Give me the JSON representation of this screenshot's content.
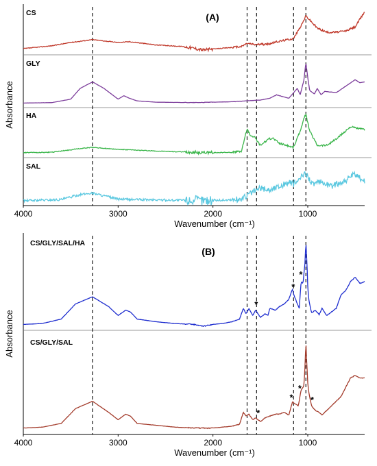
{
  "chart_data": [
    {
      "type": "line",
      "panel_label": "(A)",
      "xlabel": "Wavenumber (cm⁻¹)",
      "ylabel": "Absorbance",
      "xlim": [
        4000,
        400
      ],
      "x_reversed": true,
      "x_ticks": [
        {
          "value": 4000,
          "label": "4000"
        },
        {
          "value": 3000,
          "label": "3000"
        },
        {
          "value": 2000,
          "label": "2000"
        },
        {
          "value": 1000,
          "label": "1000"
        }
      ],
      "reference_lines_x": [
        3270,
        1640,
        1540,
        1150,
        1020
      ],
      "grid": false,
      "stacked": true,
      "series": [
        {
          "name": "CS",
          "color": "#c0392b",
          "noise": 0.03,
          "x": [
            4000,
            3700,
            3500,
            3270,
            3000,
            2880,
            2600,
            2300,
            2100,
            1900,
            1700,
            1640,
            1560,
            1420,
            1320,
            1150,
            1060,
            1020,
            900,
            800,
            700,
            600,
            500,
            400
          ],
          "y": [
            0.05,
            0.12,
            0.2,
            0.27,
            0.2,
            0.22,
            0.14,
            0.1,
            0.02,
            0.06,
            0.1,
            0.18,
            0.15,
            0.16,
            0.22,
            0.3,
            0.65,
            0.85,
            0.55,
            0.45,
            0.45,
            0.48,
            0.58,
            0.95
          ]
        },
        {
          "name": "GLY",
          "color": "#7b3b9a",
          "noise": 0.004,
          "x": [
            4000,
            3700,
            3500,
            3400,
            3270,
            3150,
            3000,
            2940,
            2880,
            2800,
            2600,
            2200,
            1800,
            1500,
            1400,
            1330,
            1200,
            1110,
            1080,
            1040,
            1020,
            1000,
            980,
            930,
            900,
            860,
            820,
            700,
            600,
            500,
            450,
            400
          ],
          "y": [
            0.01,
            0.02,
            0.1,
            0.35,
            0.5,
            0.35,
            0.1,
            0.18,
            0.12,
            0.06,
            0.03,
            0.02,
            0.04,
            0.08,
            0.12,
            0.2,
            0.12,
            0.35,
            0.2,
            0.55,
            0.95,
            0.6,
            0.3,
            0.22,
            0.35,
            0.2,
            0.28,
            0.25,
            0.4,
            0.55,
            0.48,
            0.5
          ]
        },
        {
          "name": "HA",
          "color": "#3ab54a",
          "noise": 0.03,
          "x": [
            4000,
            3700,
            3400,
            3270,
            3000,
            2600,
            2200,
            2000,
            1800,
            1700,
            1640,
            1610,
            1560,
            1500,
            1410,
            1370,
            1300,
            1150,
            1080,
            1040,
            1020,
            980,
            900,
            800,
            700,
            600,
            550,
            500,
            450,
            400
          ],
          "y": [
            0.02,
            0.03,
            0.12,
            0.15,
            0.1,
            0.06,
            0.03,
            0.02,
            0.03,
            0.05,
            0.6,
            0.45,
            0.4,
            0.2,
            0.35,
            0.38,
            0.25,
            0.15,
            0.55,
            0.85,
            0.95,
            0.55,
            0.2,
            0.2,
            0.35,
            0.55,
            0.65,
            0.62,
            0.6,
            0.58
          ]
        },
        {
          "name": "SAL",
          "color": "#5bc8e0",
          "noise": 0.1,
          "x": [
            4000,
            3600,
            3400,
            3270,
            3100,
            3000,
            2600,
            2200,
            2000,
            1800,
            1700,
            1600,
            1500,
            1400,
            1300,
            1200,
            1150,
            1100,
            1020,
            950,
            850,
            750,
            650,
            600,
            550,
            500,
            450,
            400
          ],
          "y": [
            0.02,
            0.05,
            0.18,
            0.22,
            0.12,
            0.06,
            0.04,
            0.03,
            0.03,
            0.04,
            0.06,
            0.22,
            0.35,
            0.3,
            0.4,
            0.5,
            0.45,
            0.55,
            0.75,
            0.45,
            0.5,
            0.4,
            0.5,
            0.55,
            0.65,
            0.7,
            0.6,
            0.55
          ]
        }
      ]
    },
    {
      "type": "line",
      "panel_label": "(B)",
      "xlabel": "Wavenumber (cm⁻¹)",
      "ylabel": "Absorbance",
      "xlim": [
        4000,
        400
      ],
      "x_reversed": true,
      "x_ticks": [
        {
          "value": 4000,
          "label": "4000"
        },
        {
          "value": 3000,
          "label": "3000"
        },
        {
          "value": 2000,
          "label": "2000"
        },
        {
          "value": 1000,
          "label": "1000"
        }
      ],
      "reference_lines_x": [
        3270,
        1640,
        1540,
        1150,
        1020
      ],
      "grid": false,
      "stacked": true,
      "series": [
        {
          "name": "CS/GLY/SAL/HA",
          "color": "#1f2ecf",
          "noise": 0.004,
          "x": [
            4000,
            3800,
            3600,
            3450,
            3270,
            3100,
            3000,
            2920,
            2870,
            2800,
            2600,
            2400,
            2200,
            2100,
            2000,
            1900,
            1800,
            1720,
            1680,
            1650,
            1620,
            1580,
            1550,
            1500,
            1450,
            1420,
            1400,
            1340,
            1300,
            1250,
            1200,
            1160,
            1150,
            1120,
            1090,
            1070,
            1050,
            1040,
            1030,
            1020,
            1010,
            1000,
            990,
            960,
            920,
            880,
            850,
            800,
            700,
            650,
            600,
            550,
            500,
            450,
            400
          ],
          "y": [
            0.02,
            0.03,
            0.08,
            0.25,
            0.33,
            0.22,
            0.12,
            0.18,
            0.16,
            0.08,
            0.05,
            0.03,
            0.02,
            0.0,
            0.02,
            0.03,
            0.05,
            0.08,
            0.2,
            0.14,
            0.2,
            0.12,
            0.18,
            0.1,
            0.14,
            0.12,
            0.2,
            0.18,
            0.22,
            0.25,
            0.3,
            0.42,
            0.36,
            0.28,
            0.2,
            0.5,
            0.48,
            0.6,
            0.7,
            0.95,
            0.75,
            0.45,
            0.3,
            0.15,
            0.18,
            0.13,
            0.2,
            0.12,
            0.2,
            0.35,
            0.4,
            0.5,
            0.55,
            0.48,
            0.5
          ]
        },
        {
          "name": "CS/GLY/SAL",
          "color": "#a33b2b",
          "noise": 0.004,
          "x": [
            4000,
            3800,
            3600,
            3450,
            3270,
            3100,
            3000,
            2920,
            2870,
            2800,
            2600,
            2400,
            2200,
            2000,
            1800,
            1720,
            1680,
            1650,
            1620,
            1580,
            1550,
            1500,
            1450,
            1400,
            1340,
            1300,
            1250,
            1200,
            1160,
            1150,
            1100,
            1070,
            1050,
            1040,
            1030,
            1020,
            1010,
            1000,
            990,
            960,
            920,
            880,
            850,
            800,
            700,
            650,
            600,
            550,
            500,
            450,
            400
          ],
          "y": [
            0.01,
            0.02,
            0.06,
            0.22,
            0.3,
            0.18,
            0.1,
            0.16,
            0.14,
            0.06,
            0.04,
            0.02,
            0.01,
            0.01,
            0.03,
            0.05,
            0.18,
            0.14,
            0.16,
            0.1,
            0.12,
            0.08,
            0.12,
            0.14,
            0.16,
            0.16,
            0.18,
            0.15,
            0.3,
            0.28,
            0.25,
            0.42,
            0.45,
            0.48,
            0.65,
            0.95,
            0.7,
            0.5,
            0.4,
            0.25,
            0.2,
            0.18,
            0.15,
            0.2,
            0.3,
            0.35,
            0.45,
            0.55,
            0.58,
            0.55,
            0.55
          ]
        }
      ],
      "annotations": [
        {
          "text": "*",
          "series": 0,
          "x": 1540
        },
        {
          "text": "*",
          "series": 0,
          "x": 1150
        },
        {
          "text": "*",
          "series": 0,
          "x": 1070
        },
        {
          "text": "*",
          "series": 1,
          "x": 1520
        },
        {
          "text": "*",
          "series": 1,
          "x": 1170
        },
        {
          "text": "*",
          "series": 1,
          "x": 1080
        },
        {
          "text": "*",
          "series": 1,
          "x": 950
        }
      ]
    }
  ]
}
